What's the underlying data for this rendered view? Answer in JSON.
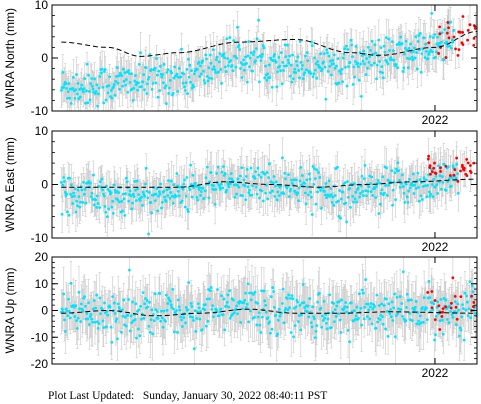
{
  "chart_data": [
    {
      "type": "scatter",
      "station": "WNRA",
      "ylabel": "WNRA North (mm)",
      "ylim": [
        -10,
        10
      ],
      "yticks": [
        "10",
        "0",
        "-10"
      ],
      "xtick_label": "2022",
      "xlim": [
        2021.18,
        2022.09
      ],
      "series": [
        {
          "kind": "points",
          "color": "#00e5ff",
          "trend": [
            [
              2021.2,
              -5.5
            ],
            [
              2021.3,
              -5
            ],
            [
              2021.4,
              -4
            ],
            [
              2021.5,
              -3
            ],
            [
              2021.55,
              0
            ],
            [
              2021.7,
              -1
            ],
            [
              2021.8,
              -1
            ],
            [
              2021.9,
              0
            ],
            [
              2022.0,
              2
            ],
            [
              2022.04,
              4
            ]
          ],
          "scatter": 2.0,
          "err": 3.0
        },
        {
          "kind": "points",
          "color": "#ff0000",
          "trend": [
            [
              2021.98,
              2.5
            ],
            [
              2022.09,
              4
            ]
          ],
          "scatter": 2.0,
          "err": 3.0
        },
        {
          "kind": "model",
          "color": "#000000",
          "points": [
            [
              2021.2,
              3
            ],
            [
              2021.3,
              2
            ],
            [
              2021.37,
              0.3
            ],
            [
              2021.45,
              1
            ],
            [
              2021.58,
              3
            ],
            [
              2021.7,
              3.5
            ],
            [
              2021.82,
              1
            ],
            [
              2021.88,
              0.5
            ],
            [
              2022.0,
              2
            ],
            [
              2022.09,
              5
            ]
          ]
        }
      ]
    },
    {
      "type": "scatter",
      "station": "WNRA",
      "ylabel": "WNRA East (mm)",
      "ylim": [
        -10,
        10
      ],
      "yticks": [
        "10",
        "0",
        "-10"
      ],
      "xtick_label": "2022",
      "xlim": [
        2021.18,
        2022.09
      ],
      "series": [
        {
          "kind": "points",
          "color": "#00e5ff",
          "trend": [
            [
              2021.2,
              -1
            ],
            [
              2021.3,
              -2
            ],
            [
              2021.4,
              -2
            ],
            [
              2021.55,
              0
            ],
            [
              2021.7,
              0
            ],
            [
              2021.8,
              -1
            ],
            [
              2021.95,
              0
            ],
            [
              2022.05,
              1
            ]
          ],
          "scatter": 1.8,
          "err": 3.0
        },
        {
          "kind": "points",
          "color": "#ff0000",
          "trend": [
            [
              2021.98,
              3
            ],
            [
              2022.09,
              3
            ]
          ],
          "scatter": 1.2,
          "err": 3.0
        },
        {
          "kind": "model",
          "color": "#000000",
          "points": [
            [
              2021.2,
              -0.5
            ],
            [
              2021.35,
              -0.5
            ],
            [
              2021.45,
              -0.5
            ],
            [
              2021.55,
              0.5
            ],
            [
              2021.65,
              0
            ],
            [
              2021.75,
              -0.5
            ],
            [
              2021.85,
              0
            ],
            [
              2021.95,
              0.5
            ],
            [
              2022.09,
              1
            ]
          ]
        }
      ]
    },
    {
      "type": "scatter",
      "station": "WNRA",
      "ylabel": "WNRA Up (mm)",
      "ylim": [
        -20,
        20
      ],
      "yticks": [
        "20",
        "10",
        "0",
        "-10",
        "-20"
      ],
      "xtick_label": "2022",
      "xlim": [
        2021.18,
        2022.09
      ],
      "series": [
        {
          "kind": "points",
          "color": "#00e5ff",
          "trend": [
            [
              2021.2,
              0
            ],
            [
              2021.4,
              -1
            ],
            [
              2021.6,
              1
            ],
            [
              2021.8,
              -1
            ],
            [
              2022.09,
              0
            ]
          ],
          "scatter": 4.5,
          "err": 8.0
        },
        {
          "kind": "points",
          "color": "#ff0000",
          "trend": [
            [
              2021.98,
              1
            ],
            [
              2022.09,
              3
            ]
          ],
          "scatter": 3.5,
          "err": 8.0
        },
        {
          "kind": "model",
          "color": "#000000",
          "points": [
            [
              2021.2,
              -1
            ],
            [
              2021.3,
              0
            ],
            [
              2021.4,
              -2
            ],
            [
              2021.5,
              -1
            ],
            [
              2021.6,
              0.5
            ],
            [
              2021.7,
              -1
            ],
            [
              2021.8,
              -1
            ],
            [
              2021.9,
              -0.5
            ],
            [
              2022.09,
              -1
            ]
          ]
        }
      ]
    }
  ],
  "footer": {
    "label": "Plot Last Updated:",
    "value": "Sunday, January 30, 2022 08:40:11 PST"
  }
}
